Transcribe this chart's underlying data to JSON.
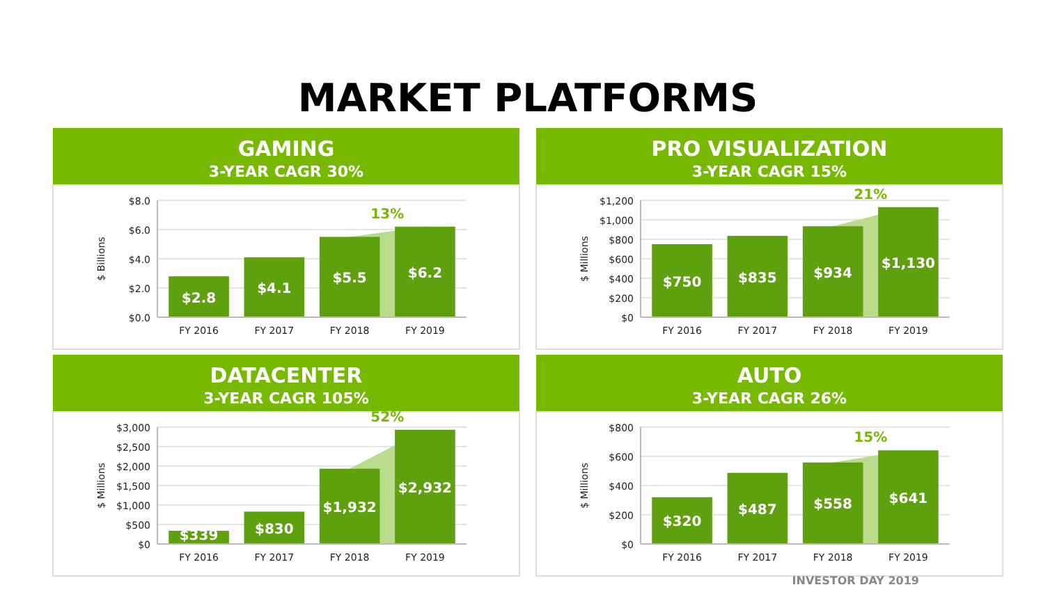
{
  "chart_data": [
    {
      "type": "bar",
      "title": "GAMING",
      "subtitle": "3-YEAR CAGR 30%",
      "ylabel": "$ Billions",
      "categories": [
        "FY 2016",
        "FY 2017",
        "FY 2018",
        "FY 2019"
      ],
      "series": [
        {
          "type": "bar",
          "color": "#5fa00f",
          "values": [
            2.8,
            4.1,
            5.5,
            6.2
          ],
          "value_labels": [
            "$2.8",
            "$4.1",
            "$5.5",
            "$6.2"
          ]
        },
        {
          "type": "area",
          "color": "#b9dc8c",
          "values": [
            null,
            null,
            5.5,
            6.2
          ]
        }
      ],
      "ylim": [
        0,
        8
      ],
      "yticks": [
        {
          "value": 0,
          "label": "$0.0"
        },
        {
          "value": 2,
          "label": "$2.0"
        },
        {
          "value": 4,
          "label": "$4.0"
        },
        {
          "value": 6,
          "label": "$6.0"
        },
        {
          "value": 8,
          "label": "$8.0"
        }
      ],
      "grid": "y",
      "annotations": [
        "MARKET PLATFORMS",
        {
          "text": "13%",
          "x": "FY 2019",
          "y": 6.2
        }
      ]
    },
    {
      "type": "bar",
      "title": "PRO VISUALIZATION",
      "subtitle": "3-YEAR CAGR 15%",
      "ylabel": "$ Millions",
      "categories": [
        "FY 2016",
        "FY 2017",
        "FY 2018",
        "FY 2019"
      ],
      "series": [
        {
          "type": "bar",
          "color": "#5fa00f",
          "values": [
            750,
            835,
            934,
            1130
          ],
          "value_labels": [
            "$750",
            "$835",
            "$934",
            "$1,130"
          ]
        },
        {
          "type": "area",
          "color": "#b9dc8c",
          "values": [
            null,
            null,
            934,
            1130
          ]
        }
      ],
      "ylim": [
        0,
        1200
      ],
      "yticks": [
        {
          "value": 0,
          "label": "$0"
        },
        {
          "value": 200,
          "label": "$200"
        },
        {
          "value": 400,
          "label": "$400"
        },
        {
          "value": 600,
          "label": "$600"
        },
        {
          "value": 800,
          "label": "$800"
        },
        {
          "value": 1000,
          "label": "$1,000"
        },
        {
          "value": 1200,
          "label": "$1,200"
        }
      ],
      "grid": "y",
      "annotations": [
        {
          "text": "21%",
          "x": "FY 2019",
          "y": 1130
        }
      ]
    },
    {
      "type": "bar",
      "title": "DATACENTER",
      "subtitle": "3-YEAR CAGR 105%",
      "ylabel": "$ Millions",
      "categories": [
        "FY 2016",
        "FY 2017",
        "FY 2018",
        "FY 2019"
      ],
      "series": [
        {
          "type": "bar",
          "color": "#5fa00f",
          "values": [
            339,
            830,
            1932,
            2932
          ],
          "value_labels": [
            "$339",
            "$830",
            "$1,932",
            "$2,932"
          ]
        },
        {
          "type": "area",
          "color": "#b9dc8c",
          "values": [
            null,
            null,
            1932,
            2932
          ]
        }
      ],
      "ylim": [
        0,
        3000
      ],
      "yticks": [
        {
          "value": 0,
          "label": "$0"
        },
        {
          "value": 500,
          "label": "$500"
        },
        {
          "value": 1000,
          "label": "$1,000"
        },
        {
          "value": 1500,
          "label": "$1,500"
        },
        {
          "value": 2000,
          "label": "$2,000"
        },
        {
          "value": 2500,
          "label": "$2,500"
        },
        {
          "value": 3000,
          "label": "$3,000"
        }
      ],
      "grid": "y",
      "annotations": [
        {
          "text": "52%",
          "x": "FY 2019",
          "y": 2932
        }
      ]
    },
    {
      "type": "bar",
      "title": "AUTO",
      "subtitle": "3-YEAR CAGR 26%",
      "ylabel": "$ Millions",
      "categories": [
        "FY 2016",
        "FY 2017",
        "FY 2018",
        "FY 2019"
      ],
      "series": [
        {
          "type": "bar",
          "color": "#5fa00f",
          "values": [
            320,
            487,
            558,
            641
          ],
          "value_labels": [
            "$320",
            "$487",
            "$558",
            "$641"
          ]
        },
        {
          "type": "area",
          "color": "#b9dc8c",
          "values": [
            null,
            null,
            558,
            641
          ]
        }
      ],
      "ylim": [
        0,
        800
      ],
      "yticks": [
        {
          "value": 0,
          "label": "$0"
        },
        {
          "value": 200,
          "label": "$200"
        },
        {
          "value": 400,
          "label": "$400"
        },
        {
          "value": 600,
          "label": "$600"
        },
        {
          "value": 800,
          "label": "$800"
        }
      ],
      "grid": "y",
      "annotations": [
        {
          "text": "15%",
          "x": "FY 2019",
          "y": 641
        },
        "INVESTOR DAY 2019"
      ]
    }
  ]
}
